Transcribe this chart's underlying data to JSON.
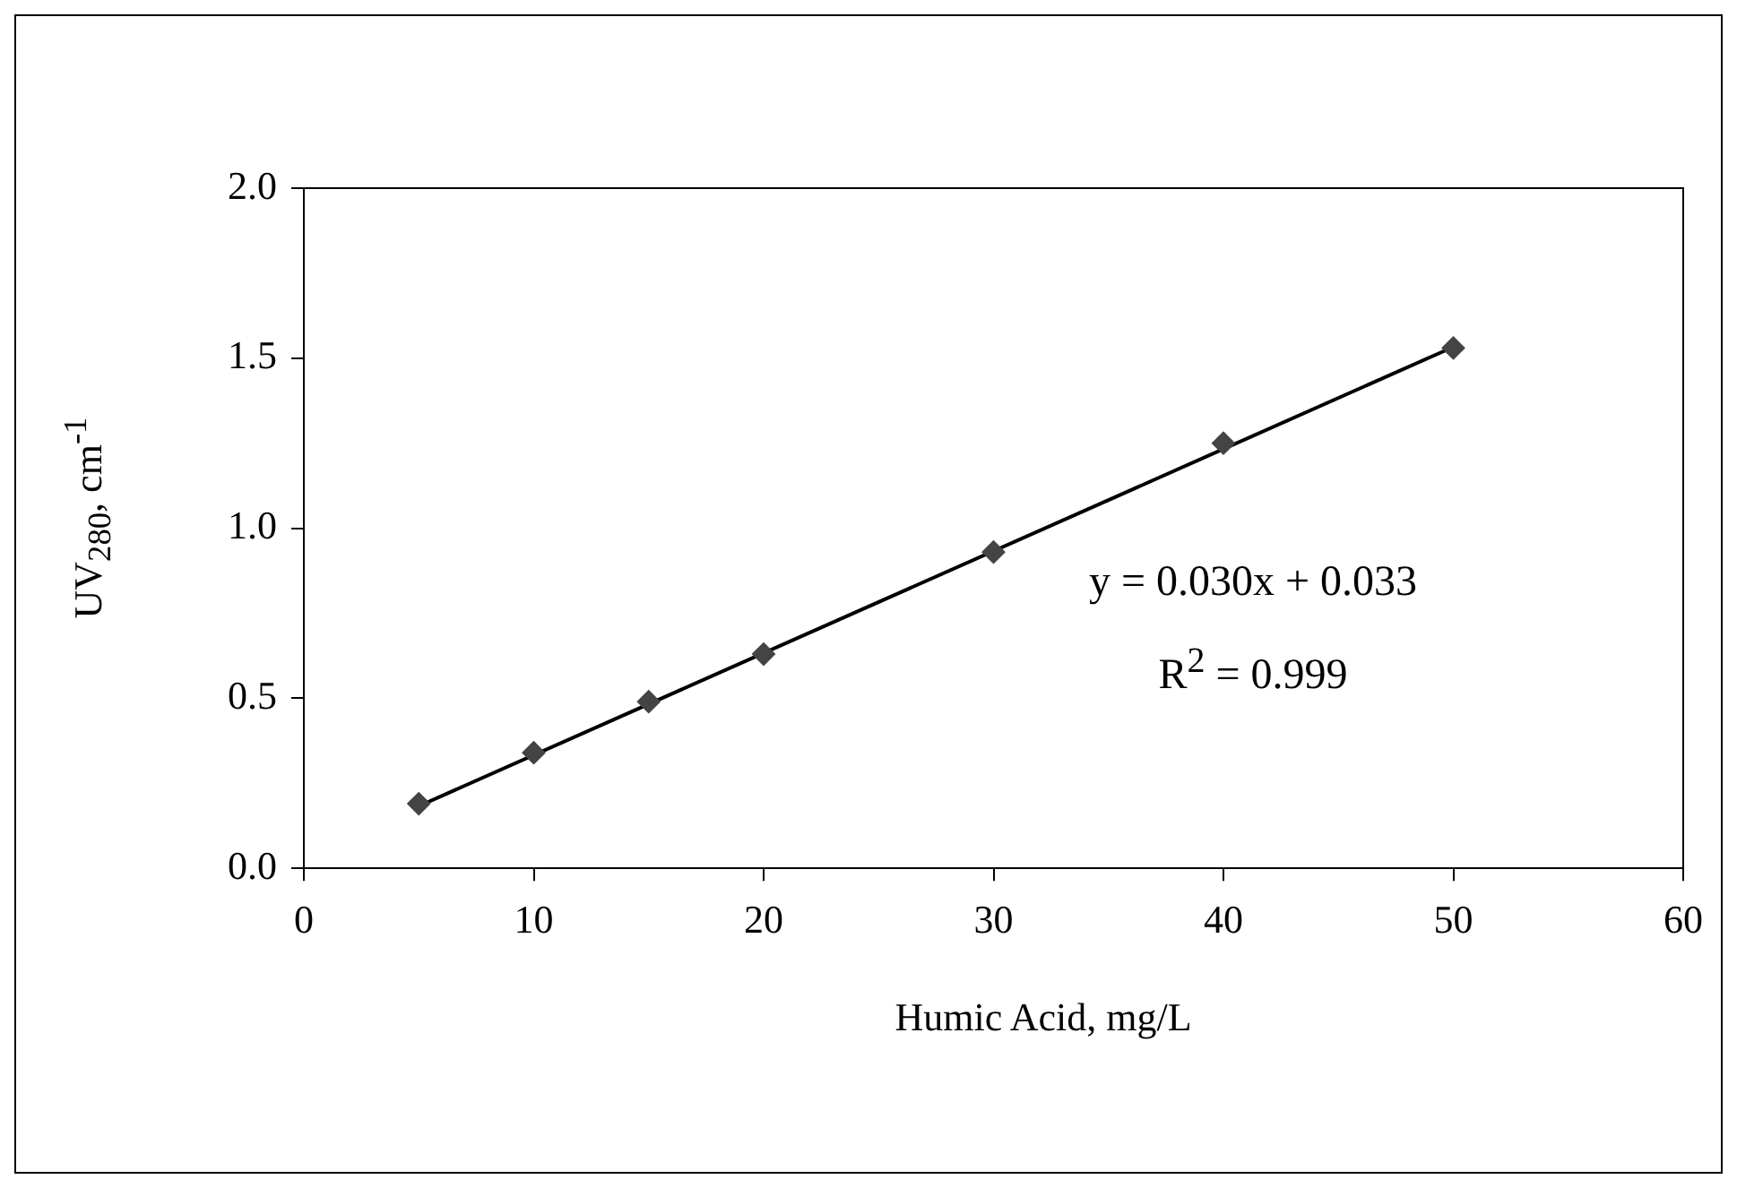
{
  "chart_data": {
    "type": "scatter",
    "xlabel": "Humic Acid, mg/L",
    "ylabel": "UV$_{280}$, cm$^{-1}$",
    "series": [
      {
        "color": "#444444",
        "marker": "diamond",
        "x": [
          5,
          10,
          15,
          20,
          30,
          40,
          50
        ],
        "values": [
          0.19,
          0.34,
          0.49,
          0.63,
          0.93,
          1.25,
          1.53
        ]
      },
      {
        "type": "line",
        "color": "#000000",
        "marker": "none",
        "x": [
          5,
          50
        ],
        "values": [
          0.183,
          1.533
        ]
      }
    ],
    "annotations": [
      "y = 0.030x + 0.033",
      "R$^{2}$ = 0.999"
    ],
    "xlim": [
      0,
      60
    ],
    "xticks": [
      0,
      10,
      20,
      30,
      40,
      50,
      60
    ],
    "ylim": [
      0,
      2
    ],
    "yticks": [
      {
        "value": 0,
        "label": "0.0"
      },
      {
        "value": 0.5,
        "label": "0.5"
      },
      {
        "value": 1,
        "label": "1.0"
      },
      {
        "value": 1.5,
        "label": "1.5"
      },
      {
        "value": 2,
        "label": "2.0"
      }
    ],
    "grid": false,
    "legend": false,
    "line_style": "solid"
  }
}
